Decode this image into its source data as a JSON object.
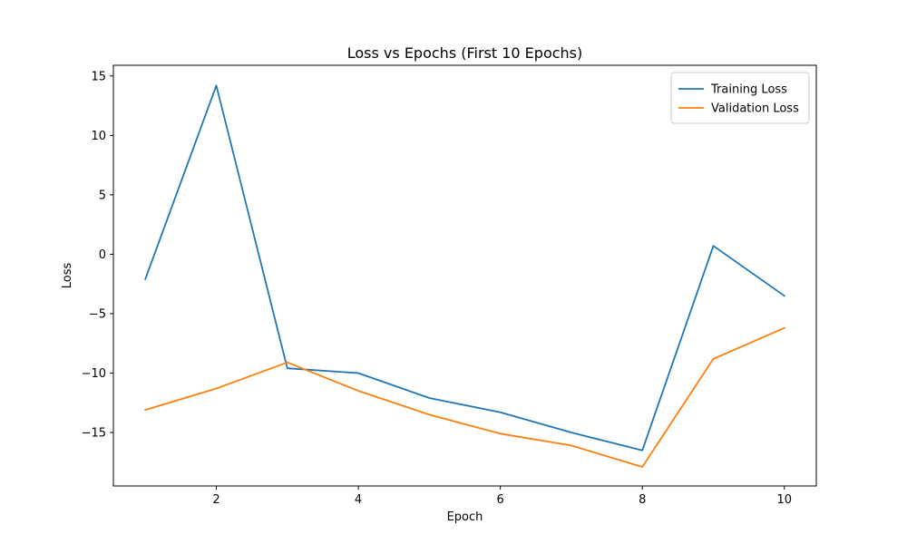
{
  "chart_data": {
    "type": "line",
    "title": "Loss vs Epochs (First 10 Epochs)",
    "xlabel": "Epoch",
    "ylabel": "Loss",
    "x": [
      1,
      2,
      3,
      4,
      5,
      6,
      7,
      8,
      9,
      10
    ],
    "xlim": [
      0.55,
      10.45
    ],
    "ylim": [
      -19.5,
      15.9
    ],
    "xticks": [
      2,
      4,
      6,
      8,
      10
    ],
    "yticks": [
      15,
      10,
      5,
      0,
      -5,
      -10,
      -15
    ],
    "ytick_labels": [
      "15",
      "10",
      "5",
      "0",
      "−5",
      "−10",
      "−15"
    ],
    "grid": false,
    "legend_position": "top-right",
    "series": [
      {
        "name": "Training Loss",
        "color": "#1f77b4",
        "values": [
          -2.1,
          14.2,
          -9.6,
          -10.0,
          -12.1,
          -13.3,
          -15.0,
          -16.5,
          0.7,
          -3.5
        ]
      },
      {
        "name": "Validation Loss",
        "color": "#ff7f0e",
        "values": [
          -13.1,
          -11.3,
          -9.1,
          -11.5,
          -13.5,
          -15.1,
          -16.1,
          -17.9,
          -8.8,
          -6.2
        ]
      }
    ]
  }
}
